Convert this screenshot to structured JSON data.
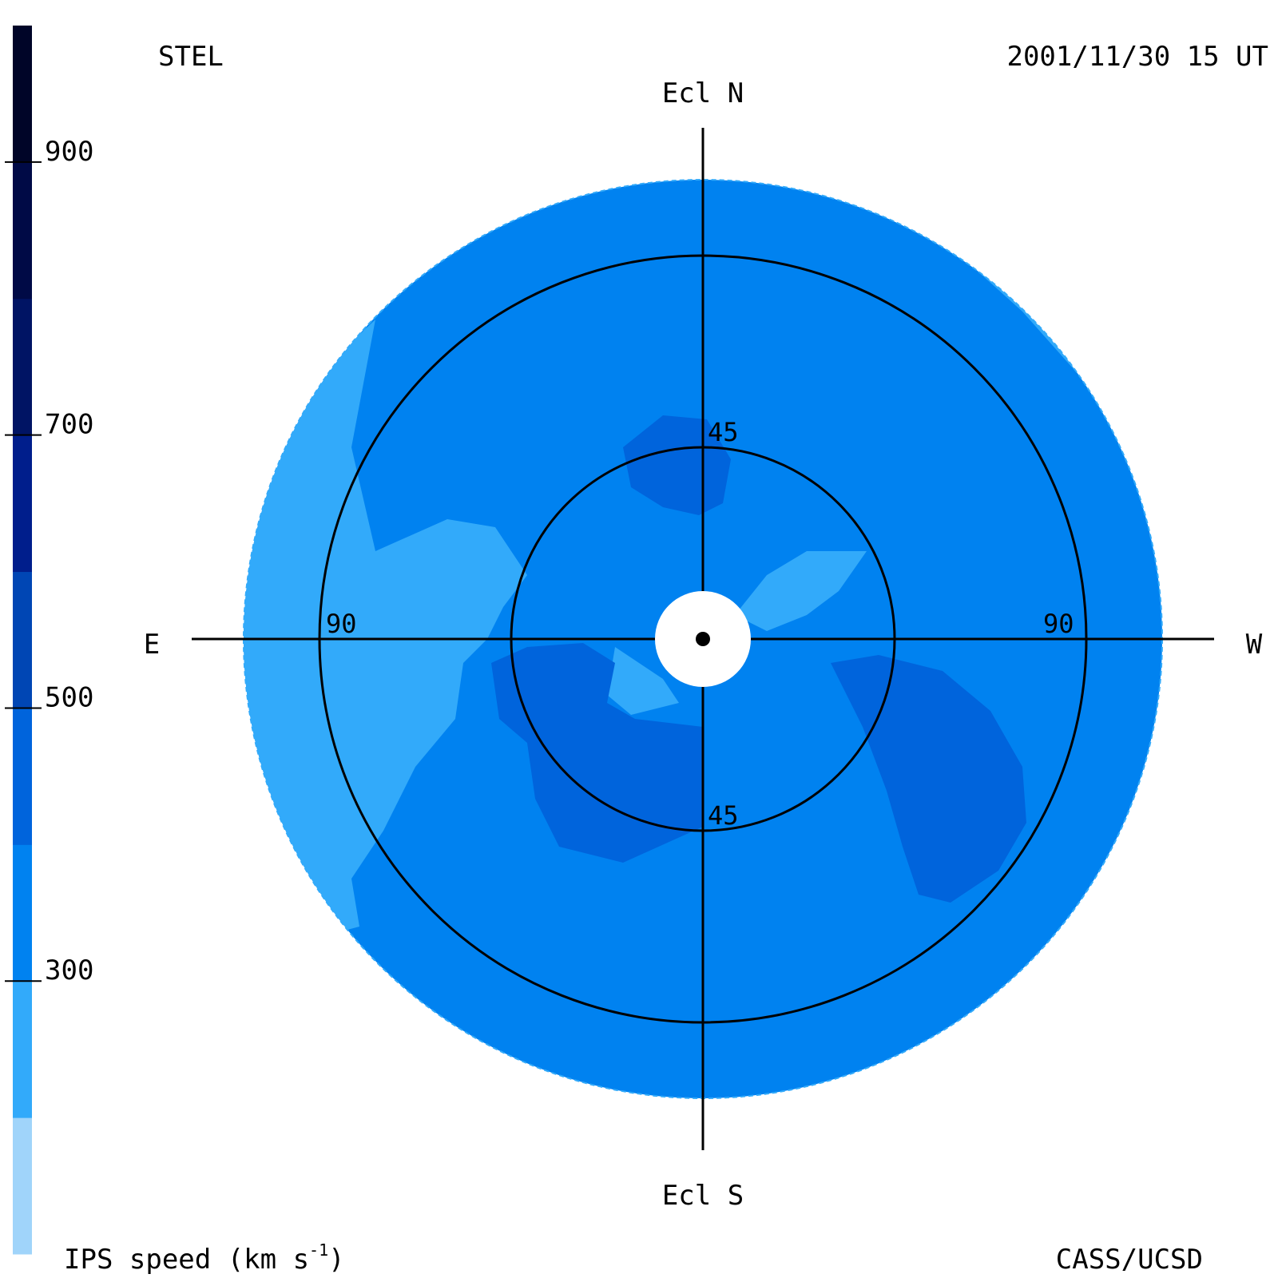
{
  "header": {
    "observatory": "STEL",
    "timestamp": "2001/11/30 15 UT"
  },
  "footer": {
    "credit": "CASS/UCSD",
    "colorbar_label": "IPS speed (km s",
    "colorbar_label_exp": "-1",
    "colorbar_label_end": ")"
  },
  "directions": {
    "north": "Ecl N",
    "south": "Ecl S",
    "east": "E",
    "west": "W"
  },
  "chart_data": {
    "type": "heatmap",
    "projection": "fisheye sky map centered on the Sun, elongation rings",
    "colorbar": {
      "ticks": [
        300,
        500,
        700,
        900
      ],
      "range": [
        100,
        1000
      ],
      "bins": [
        {
          "from": 100,
          "to": 200,
          "color": "#a0d4fa"
        },
        {
          "from": 200,
          "to": 300,
          "color": "#32aafa"
        },
        {
          "from": 300,
          "to": 400,
          "color": "#0082f0"
        },
        {
          "from": 400,
          "to": 500,
          "color": "#0064dc"
        },
        {
          "from": 500,
          "to": 600,
          "color": "#0046b4"
        },
        {
          "from": 600,
          "to": 700,
          "color": "#001e8c"
        },
        {
          "from": 700,
          "to": 800,
          "color": "#001464"
        },
        {
          "from": 800,
          "to": 900,
          "color": "#000a46"
        },
        {
          "from": 900,
          "to": 1000,
          "color": "#000528"
        }
      ]
    },
    "rings": [
      {
        "elongation": 45,
        "labels": [
          "45",
          "45"
        ]
      },
      {
        "elongation": 90,
        "labels": [
          "90",
          "90"
        ]
      }
    ],
    "regions": {
      "background_speed_bin": "300-400",
      "fast_streams_speed_bin": "400-500",
      "slow_outer_regions_speed_bin": "200-300",
      "center": "solar occulting disk (no data)"
    }
  }
}
